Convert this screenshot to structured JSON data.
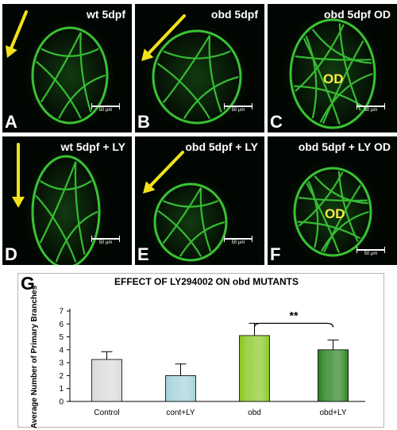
{
  "panels": [
    {
      "id": "A",
      "title": "wt 5dpf",
      "letter": "A",
      "scale_label": "50 µm",
      "arrow": true,
      "od_label": ""
    },
    {
      "id": "B",
      "title": "obd 5dpf",
      "letter": "B",
      "scale_label": "50 µm",
      "arrow": true,
      "od_label": ""
    },
    {
      "id": "C",
      "title": "obd 5dpf OD",
      "letter": "C",
      "scale_label": "50 µm",
      "arrow": false,
      "od_label": "OD"
    },
    {
      "id": "D",
      "title": "wt 5dpf + LY",
      "letter": "D",
      "scale_label": "50 µm",
      "arrow": true,
      "od_label": ""
    },
    {
      "id": "E",
      "title": "obd 5dpf + LY",
      "letter": "E",
      "scale_label": "50 µm",
      "arrow": true,
      "od_label": ""
    },
    {
      "id": "F",
      "title": "obd 5dpf + LY OD",
      "letter": "F",
      "scale_label": "50 µm",
      "arrow": false,
      "od_label": "OD"
    }
  ],
  "colors": {
    "arrow": "#f2e21a",
    "vessel": "#3fd63a",
    "panel_bg": "#020602",
    "od_text": "#ffee44"
  },
  "figure_letter_g": "G",
  "chart_data": {
    "type": "bar",
    "title": "EFFECT OF LY294002 ON obd MUTANTS",
    "ylabel": "Average Number of Primary Branches",
    "xlabel": "",
    "categories": [
      "Control",
      "cont+LY",
      "obd",
      "obd+LY"
    ],
    "values": [
      3.25,
      2.0,
      5.1,
      4.0
    ],
    "errors": [
      0.6,
      0.9,
      0.95,
      0.75
    ],
    "bar_colors": [
      "#d8d8d8",
      "#9fd0d6",
      "#86c51a",
      "#1f7e16"
    ],
    "ylim": [
      0,
      7
    ],
    "yticks": [
      0,
      1,
      2,
      3,
      4,
      5,
      6,
      7
    ],
    "grid": false,
    "significance": {
      "from": "obd",
      "to": "obd+LY",
      "label": "**"
    }
  }
}
